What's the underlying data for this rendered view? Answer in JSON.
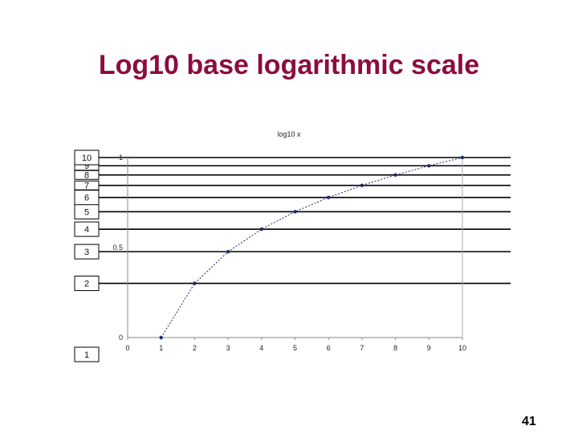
{
  "slide": {
    "title": "Log10 base logarithmic scale",
    "page_number": "41"
  },
  "chart_data": {
    "type": "line",
    "title": "log10 x",
    "x": [
      1,
      2,
      3,
      4,
      5,
      6,
      7,
      8,
      9,
      10
    ],
    "series": [
      {
        "values": [
          0,
          0.301,
          0.477,
          0.602,
          0.699,
          0.778,
          0.845,
          0.903,
          0.954,
          1
        ]
      }
    ],
    "xlim": [
      0,
      10
    ],
    "ylim": [
      0,
      1
    ],
    "x_ticks": [
      "0",
      "1",
      "2",
      "3",
      "4",
      "5",
      "6",
      "7",
      "8",
      "9",
      "10"
    ],
    "y_ticks": [
      "0",
      "0.5",
      "1"
    ],
    "y_tick_values": [
      0,
      0.5,
      1
    ],
    "grid": false,
    "line_color": "#1f2a6e",
    "marker_color": "#1f2a6e"
  },
  "log_scale": {
    "labels": [
      "1",
      "2",
      "3",
      "4",
      "5",
      "6",
      "7",
      "8",
      "9",
      "10"
    ],
    "values": [
      1,
      2,
      3,
      4,
      5,
      6,
      7,
      8,
      9,
      10
    ],
    "line_color": "#000000"
  }
}
